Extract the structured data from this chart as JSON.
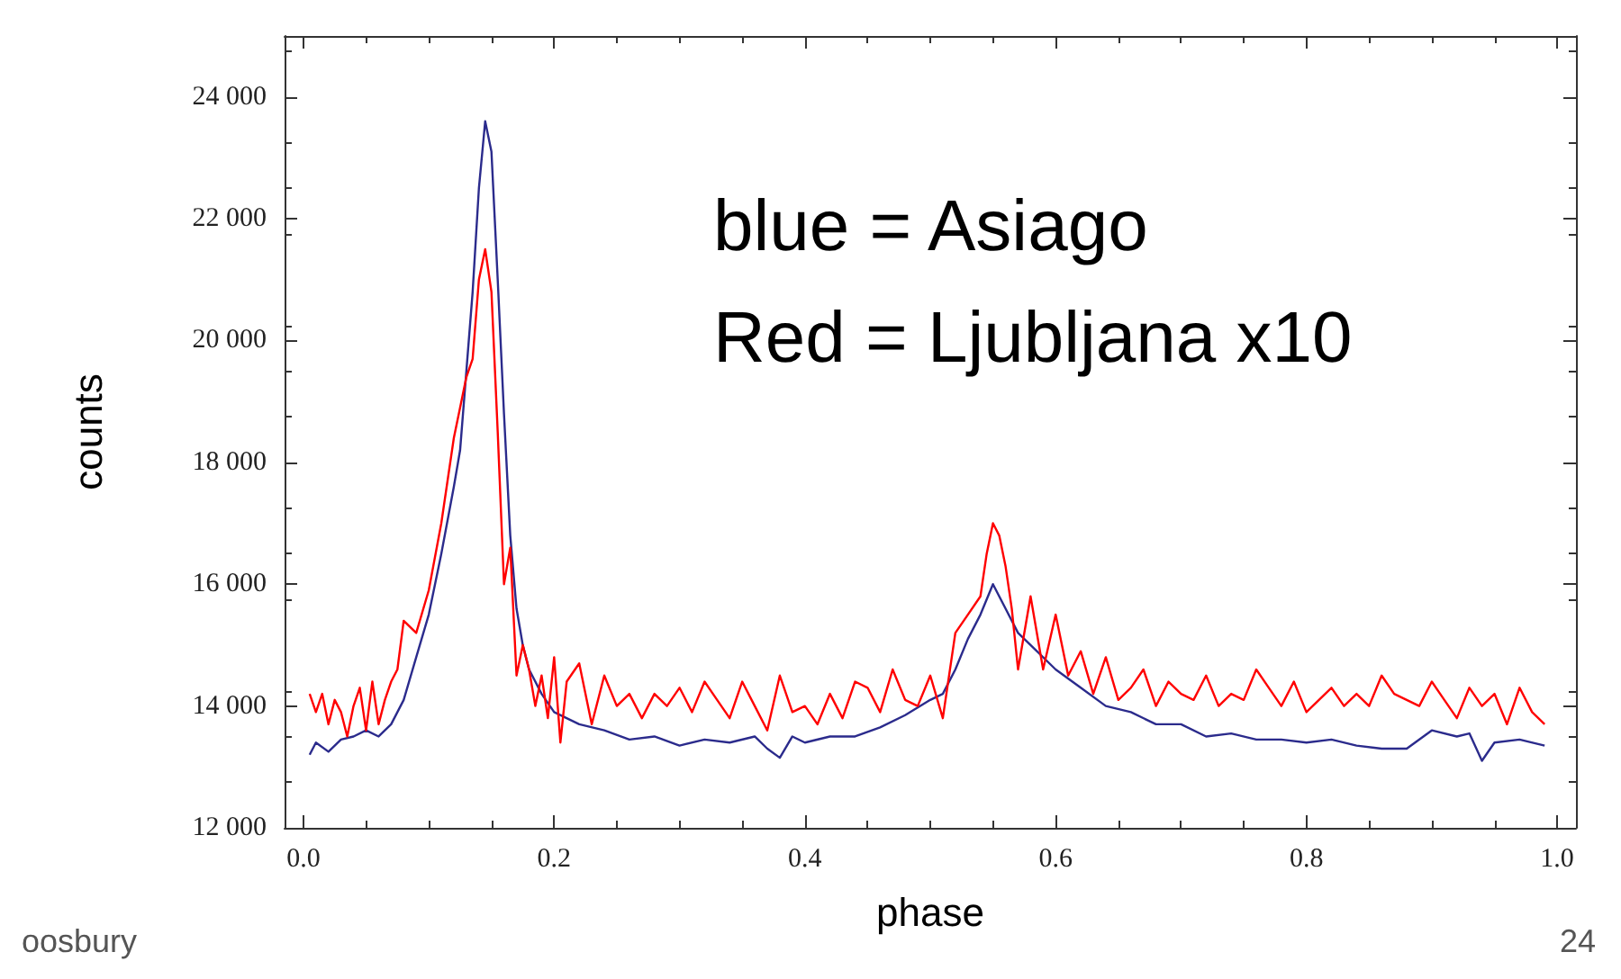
{
  "chart_data": {
    "type": "line",
    "xlabel": "phase",
    "ylabel": "counts",
    "xlim": [
      -0.015,
      1.015
    ],
    "ylim": [
      12000,
      25000
    ],
    "xticks": [
      {
        "value": 0,
        "label": "0.0"
      },
      0.2,
      0.4,
      0.6,
      0.8,
      {
        "value": 1,
        "label": "1.0"
      }
    ],
    "yticks": [
      {
        "value": 12000,
        "label": "12 000"
      },
      {
        "value": 14000,
        "label": "14 000"
      },
      {
        "value": 16000,
        "label": "16 000"
      },
      {
        "value": 18000,
        "label": "18 000"
      },
      {
        "value": 20000,
        "label": "20 000"
      },
      {
        "value": 22000,
        "label": "22 000"
      },
      {
        "value": 24000,
        "label": "24 000"
      }
    ],
    "grid": false,
    "marker": "none",
    "line_style": "solid",
    "annotations": [
      "blue = Asiago",
      "Red = Ljubljana x10",
      "oosbury",
      "24"
    ],
    "series": [
      {
        "color": "#2b2b8c",
        "x": [
          0.005,
          0.01,
          0.02,
          0.03,
          0.04,
          0.05,
          0.06,
          0.07,
          0.08,
          0.09,
          0.1,
          0.11,
          0.12,
          0.125,
          0.13,
          0.135,
          0.14,
          0.145,
          0.15,
          0.155,
          0.16,
          0.165,
          0.17,
          0.175,
          0.18,
          0.19,
          0.2,
          0.21,
          0.22,
          0.24,
          0.26,
          0.28,
          0.3,
          0.32,
          0.34,
          0.36,
          0.37,
          0.38,
          0.39,
          0.4,
          0.42,
          0.44,
          0.46,
          0.48,
          0.5,
          0.51,
          0.52,
          0.53,
          0.54,
          0.55,
          0.56,
          0.57,
          0.58,
          0.6,
          0.62,
          0.64,
          0.66,
          0.68,
          0.7,
          0.72,
          0.74,
          0.76,
          0.78,
          0.8,
          0.82,
          0.84,
          0.86,
          0.88,
          0.9,
          0.92,
          0.93,
          0.94,
          0.95,
          0.97,
          0.99
        ],
        "values": [
          13200,
          13400,
          13250,
          13450,
          13500,
          13600,
          13500,
          13700,
          14100,
          14800,
          15500,
          16500,
          17600,
          18200,
          19500,
          20800,
          22500,
          23600,
          23100,
          21000,
          18800,
          16800,
          15600,
          15000,
          14600,
          14200,
          13900,
          13800,
          13700,
          13600,
          13450,
          13500,
          13350,
          13450,
          13400,
          13500,
          13300,
          13150,
          13500,
          13400,
          13500,
          13500,
          13650,
          13850,
          14100,
          14200,
          14600,
          15100,
          15500,
          16000,
          15600,
          15200,
          15000,
          14600,
          14300,
          14000,
          13900,
          13700,
          13700,
          13500,
          13550,
          13450,
          13450,
          13400,
          13450,
          13350,
          13300,
          13300,
          13600,
          13500,
          13550,
          13100,
          13400,
          13450,
          13350
        ]
      },
      {
        "color": "#ff0000",
        "x": [
          0.005,
          0.01,
          0.015,
          0.02,
          0.025,
          0.03,
          0.035,
          0.04,
          0.045,
          0.05,
          0.055,
          0.06,
          0.065,
          0.07,
          0.075,
          0.08,
          0.09,
          0.1,
          0.11,
          0.12,
          0.13,
          0.135,
          0.14,
          0.145,
          0.15,
          0.155,
          0.16,
          0.165,
          0.17,
          0.175,
          0.18,
          0.185,
          0.19,
          0.195,
          0.2,
          0.205,
          0.21,
          0.22,
          0.23,
          0.24,
          0.25,
          0.26,
          0.27,
          0.28,
          0.29,
          0.3,
          0.31,
          0.32,
          0.33,
          0.34,
          0.35,
          0.36,
          0.37,
          0.38,
          0.39,
          0.4,
          0.41,
          0.42,
          0.43,
          0.44,
          0.45,
          0.46,
          0.47,
          0.48,
          0.49,
          0.5,
          0.51,
          0.52,
          0.53,
          0.54,
          0.545,
          0.55,
          0.555,
          0.56,
          0.565,
          0.57,
          0.58,
          0.59,
          0.6,
          0.61,
          0.62,
          0.63,
          0.64,
          0.65,
          0.66,
          0.67,
          0.68,
          0.69,
          0.7,
          0.71,
          0.72,
          0.73,
          0.74,
          0.75,
          0.76,
          0.77,
          0.78,
          0.79,
          0.8,
          0.81,
          0.82,
          0.83,
          0.84,
          0.85,
          0.86,
          0.87,
          0.88,
          0.89,
          0.9,
          0.91,
          0.92,
          0.93,
          0.94,
          0.95,
          0.96,
          0.97,
          0.98,
          0.99
        ],
        "values": [
          14200,
          13900,
          14200,
          13700,
          14100,
          13900,
          13500,
          14000,
          14300,
          13600,
          14400,
          13700,
          14100,
          14400,
          14600,
          15400,
          15200,
          15900,
          17000,
          18400,
          19400,
          19700,
          21000,
          21500,
          20800,
          18500,
          16000,
          16600,
          14500,
          15000,
          14600,
          14000,
          14500,
          13800,
          14800,
          13400,
          14400,
          14700,
          13700,
          14500,
          14000,
          14200,
          13800,
          14200,
          14000,
          14300,
          13900,
          14400,
          14100,
          13800,
          14400,
          14000,
          13600,
          14500,
          13900,
          14000,
          13700,
          14200,
          13800,
          14400,
          14300,
          13900,
          14600,
          14100,
          14000,
          14500,
          13800,
          15200,
          15500,
          15800,
          16500,
          17000,
          16800,
          16300,
          15600,
          14600,
          15800,
          14600,
          15500,
          14500,
          14900,
          14200,
          14800,
          14100,
          14300,
          14600,
          14000,
          14400,
          14200,
          14100,
          14500,
          14000,
          14200,
          14100,
          14600,
          14300,
          14000,
          14400,
          13900,
          14100,
          14300,
          14000,
          14200,
          14000,
          14500,
          14200,
          14100,
          14000,
          14400,
          14100,
          13800,
          14300,
          14000,
          14200,
          13700,
          14300,
          13900,
          13700
        ]
      }
    ]
  }
}
